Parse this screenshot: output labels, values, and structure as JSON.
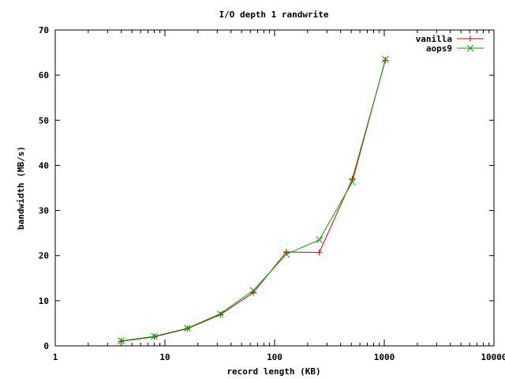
{
  "chart_data": {
    "type": "line",
    "title": "I/O depth 1 randwrite",
    "xlabel": "record length (KB)",
    "ylabel": "bandwidth (MB/s)",
    "x_scale": "log",
    "xlim": [
      1,
      10000
    ],
    "ylim": [
      0,
      70
    ],
    "x_ticks": [
      1,
      10,
      100,
      1000,
      10000
    ],
    "y_ticks": [
      0,
      10,
      20,
      30,
      40,
      50,
      60,
      70
    ],
    "x_tick_labels": [
      "1",
      "10",
      "100",
      "1000",
      "10000"
    ],
    "y_tick_labels": [
      "0",
      "10",
      "20",
      "30",
      "40",
      "50",
      "60",
      "70"
    ],
    "grid": false,
    "legend_position": "top-right",
    "series": [
      {
        "name": "vanilla",
        "color": "#cc0000",
        "marker": "plus",
        "x": [
          4,
          8,
          16,
          32,
          64,
          128,
          256,
          512,
          1024
        ],
        "y": [
          1.0,
          2.0,
          3.8,
          6.9,
          11.8,
          20.8,
          20.7,
          37.0,
          63.3
        ]
      },
      {
        "name": "aops9",
        "color": "#00a000",
        "marker": "cross",
        "x": [
          4,
          8,
          16,
          32,
          64,
          128,
          256,
          512,
          1024
        ],
        "y": [
          1.1,
          2.1,
          3.9,
          7.1,
          12.3,
          20.3,
          23.5,
          36.3,
          63.5
        ]
      }
    ]
  }
}
